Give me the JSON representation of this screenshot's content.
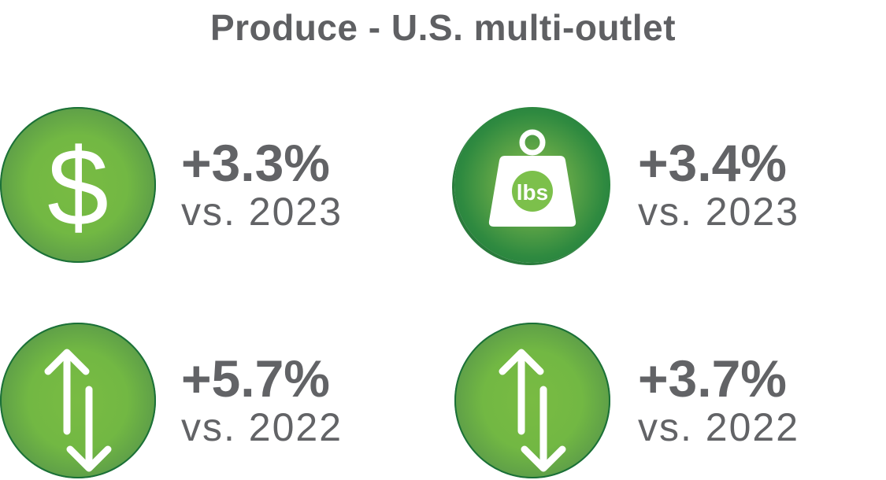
{
  "title": "Produce - U.S. multi-outlet",
  "colors": {
    "circle_green": "#72b843",
    "circle_edge": "#1f7b3d",
    "text_gray": "#626366"
  },
  "stats": [
    {
      "icon": "dollar-icon",
      "value": "+3.3%",
      "label": "vs. 2023"
    },
    {
      "icon": "weight-lbs-icon",
      "icon_text": "lbs",
      "value": "+3.4%",
      "label": "vs. 2023"
    },
    {
      "icon": "up-down-arrows-icon",
      "value": "+5.7%",
      "label": "vs. 2022"
    },
    {
      "icon": "up-down-arrows-icon",
      "value": "+3.7%",
      "label": "vs. 2022"
    }
  ]
}
